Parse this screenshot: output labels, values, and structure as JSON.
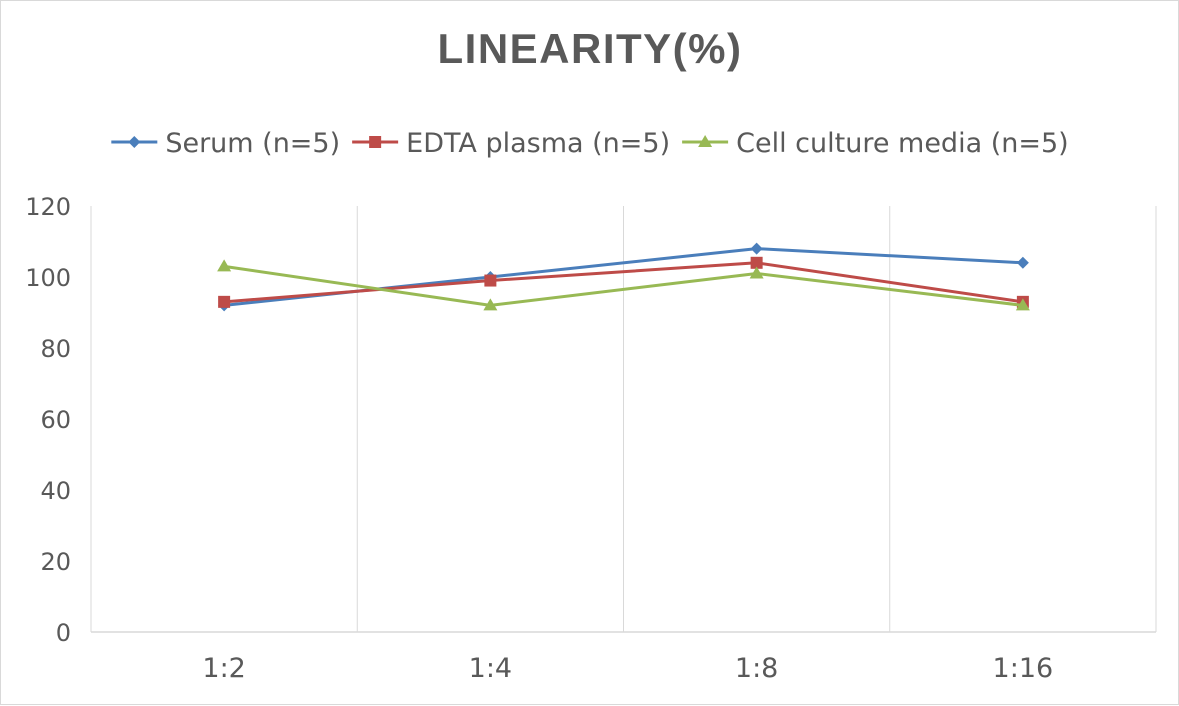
{
  "chart_data": {
    "type": "line",
    "title": "LINEARITY(%)",
    "xlabel": "",
    "ylabel": "",
    "categories": [
      "1:2",
      "1:4",
      "1:8",
      "1:16"
    ],
    "ylim": [
      0,
      120
    ],
    "yticks": [
      0,
      20,
      40,
      60,
      80,
      100,
      120
    ],
    "grid": "vertical",
    "legend_position": "top",
    "series": [
      {
        "name": "Serum (n=5)",
        "values": [
          92,
          100,
          108,
          104
        ],
        "color": "#4a7ebb",
        "marker": "diamond"
      },
      {
        "name": "EDTA plasma (n=5)",
        "values": [
          93,
          99,
          104,
          93
        ],
        "color": "#be4b48",
        "marker": "square"
      },
      {
        "name": "Cell culture media (n=5)",
        "values": [
          103,
          92,
          101,
          92
        ],
        "color": "#98b954",
        "marker": "triangle"
      }
    ]
  }
}
